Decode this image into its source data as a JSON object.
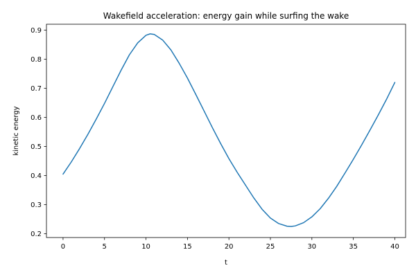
{
  "chart_data": {
    "type": "line",
    "title": "Wakefield acceleration: energy gain while surfing the wake",
    "xlabel": "t",
    "ylabel": "kinetic energy",
    "xlim": [
      -2.0,
      41.3
    ],
    "ylim": [
      0.187,
      0.92
    ],
    "xticks": [
      0,
      5,
      10,
      15,
      20,
      25,
      30,
      35,
      40
    ],
    "yticks": [
      0.2,
      0.3,
      0.4,
      0.5,
      0.6,
      0.7,
      0.8,
      0.9
    ],
    "grid": false,
    "legend": "none",
    "series": [
      {
        "color": "#1f77b4",
        "x": [
          0,
          1,
          2,
          3,
          4,
          5,
          6,
          7,
          8,
          9,
          10,
          10.5,
          11,
          12,
          13,
          14,
          15,
          16,
          17,
          18,
          19,
          20,
          21,
          22,
          23,
          24,
          25,
          26,
          27,
          27.5,
          28,
          29,
          30,
          31,
          32,
          33,
          34,
          35,
          36,
          37,
          38,
          39,
          40
        ],
        "y": [
          0.405,
          0.447,
          0.493,
          0.542,
          0.594,
          0.648,
          0.705,
          0.762,
          0.815,
          0.856,
          0.882,
          0.887,
          0.885,
          0.866,
          0.832,
          0.786,
          0.735,
          0.679,
          0.622,
          0.565,
          0.51,
          0.458,
          0.411,
          0.367,
          0.323,
          0.284,
          0.254,
          0.235,
          0.226,
          0.225,
          0.227,
          0.238,
          0.258,
          0.286,
          0.322,
          0.363,
          0.409,
          0.456,
          0.505,
          0.556,
          0.608,
          0.662,
          0.72
        ]
      }
    ]
  }
}
